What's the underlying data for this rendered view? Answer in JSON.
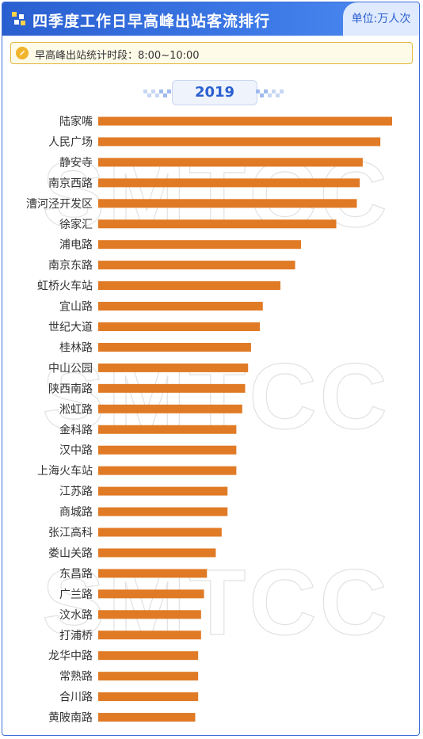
{
  "header": {
    "title": "四季度工作日早高峰出站客流排行",
    "unit": "单位:万人次",
    "logo_icon": "chart-logo-icon"
  },
  "note": {
    "text": "早高峰出站统计时段：8:00~10:00",
    "icon": "tag-icon"
  },
  "year_label": "2019",
  "watermark": "SMTCC",
  "colors": {
    "bar": "#e07a25",
    "header": "#2f66d6",
    "accent": "#2a5fd0"
  },
  "chart_data": {
    "type": "bar",
    "orientation": "horizontal",
    "title": "四季度工作日早高峰出站客流排行",
    "unit": "单位:万人次",
    "categories": [
      "陆家嘴",
      "人民广场",
      "静安寺",
      "南京西路",
      "漕河泾开发区",
      "徐家汇",
      "浦电路",
      "南京东路",
      "虹桥火车站",
      "宜山路",
      "世纪大道",
      "桂林路",
      "中山公园",
      "陕西南路",
      "淞虹路",
      "金科路",
      "汉中路",
      "上海火车站",
      "江苏路",
      "商城路",
      "张江高科",
      "娄山关路",
      "东昌路",
      "广兰路",
      "汶水路",
      "打浦桥",
      "龙华中路",
      "常熟路",
      "合川路",
      "黄陂南路"
    ],
    "values": [
      100,
      96,
      90,
      89,
      88,
      81,
      69,
      67,
      62,
      56,
      55,
      52,
      51,
      50,
      49,
      47,
      47,
      47,
      44,
      44,
      42,
      40,
      37,
      36,
      35,
      35,
      34,
      34,
      34,
      33
    ],
    "xlim": [
      0,
      100
    ],
    "grid": false,
    "legend": "none"
  }
}
